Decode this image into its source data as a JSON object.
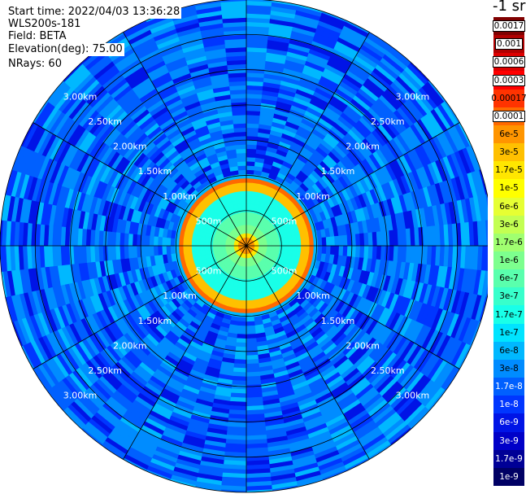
{
  "info": {
    "start_time": "Start time: 2022/04/03 13:36:28",
    "instrument": "WLS200s-181",
    "field": "Field: BETA",
    "elevation": "Elevation(deg): 75.00",
    "nrays": "NRays: 60"
  },
  "chart_data": {
    "type": "heatmap",
    "projection": "polar",
    "grid": true,
    "range_rings": [
      "500m",
      "1.00km",
      "1.50km",
      "2.00km",
      "2.50km",
      "3.00km"
    ],
    "range_ring_values_km": [
      0.5,
      1.0,
      1.5,
      2.0,
      2.5,
      3.0
    ],
    "max_range_km": 3.5,
    "spokes_deg": [
      0,
      30,
      60,
      90,
      120,
      150,
      180,
      210,
      240,
      270,
      300,
      330
    ],
    "colorbar": {
      "unit": "-1 sr",
      "levels": [
        {
          "label": "0.0017",
          "color": "#800000",
          "boxed": true
        },
        {
          "label": "0.001",
          "color": "#b00000",
          "boxed": true
        },
        {
          "label": "0.0006",
          "color": "#dd0000",
          "boxed": true
        },
        {
          "label": "0.0003",
          "color": "#ff0000",
          "boxed": true
        },
        {
          "label": "0.00017",
          "color": "#ff3300",
          "boxed": false
        },
        {
          "label": "0.0001",
          "color": "#ff6a00",
          "boxed": true
        },
        {
          "label": "6e-5",
          "color": "#ff9500",
          "boxed": false
        },
        {
          "label": "3e-5",
          "color": "#ffc000",
          "boxed": false
        },
        {
          "label": "1.7e-5",
          "color": "#ffe600",
          "boxed": false
        },
        {
          "label": "1e-5",
          "color": "#ffff00",
          "boxed": false
        },
        {
          "label": "6e-6",
          "color": "#e6ff33",
          "boxed": false
        },
        {
          "label": "3e-6",
          "color": "#c3ff52",
          "boxed": false
        },
        {
          "label": "1.7e-6",
          "color": "#a0ff70",
          "boxed": false
        },
        {
          "label": "1e-6",
          "color": "#7dff8e",
          "boxed": false
        },
        {
          "label": "6e-7",
          "color": "#5affad",
          "boxed": false
        },
        {
          "label": "3e-7",
          "color": "#38ffcb",
          "boxed": false
        },
        {
          "label": "1.7e-7",
          "color": "#19ffe8",
          "boxed": false
        },
        {
          "label": "1e-7",
          "color": "#00e4ff",
          "boxed": false
        },
        {
          "label": "6e-8",
          "color": "#00b8ff",
          "boxed": false
        },
        {
          "label": "3e-8",
          "color": "#008cff",
          "boxed": false
        },
        {
          "label": "1.7e-8",
          "color": "#0060ff",
          "boxed": false
        },
        {
          "label": "1e-8",
          "color": "#0036ff",
          "boxed": false
        },
        {
          "label": "6e-9",
          "color": "#0014e6",
          "boxed": false
        },
        {
          "label": "3e-9",
          "color": "#0000c8",
          "boxed": false
        },
        {
          "label": "1.7e-9",
          "color": "#000096",
          "boxed": false
        },
        {
          "label": "1e-9",
          "color": "#000064",
          "boxed": false
        }
      ]
    },
    "field_profile": [
      {
        "r_km": 0.1,
        "color": "#ff9500"
      },
      {
        "r_km": 0.2,
        "color": "#ffe600"
      },
      {
        "r_km": 0.3,
        "color": "#7dff8e"
      },
      {
        "r_km": 0.5,
        "color": "#5affad"
      },
      {
        "r_km": 0.8,
        "color": "#19ffe8"
      },
      {
        "r_km": 0.9,
        "color": "#ffc000"
      },
      {
        "r_km": 0.97,
        "color": "#ff6a00"
      },
      {
        "r_km": 1.05,
        "color": "#00b8ff"
      },
      {
        "r_km": 3.5,
        "color": "#008cff"
      }
    ]
  }
}
